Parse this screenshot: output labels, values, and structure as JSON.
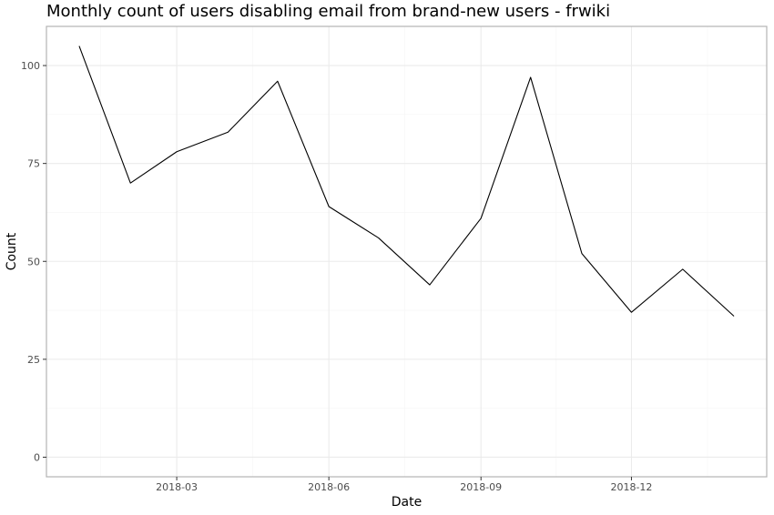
{
  "chart_data": {
    "type": "line",
    "title": "Monthly count of users disabling email from brand-new users - frwiki",
    "xlabel": "Date",
    "ylabel": "Count",
    "x": [
      "2018-01",
      "2018-02",
      "2018-03",
      "2018-04",
      "2018-05",
      "2018-06",
      "2018-07",
      "2018-08",
      "2018-09",
      "2018-10",
      "2018-11",
      "2018-12",
      "2019-01",
      "2019-02"
    ],
    "series": [
      {
        "values": [
          105,
          70,
          78,
          83,
          96,
          64,
          56,
          44,
          61,
          97,
          52,
          37,
          48,
          36
        ]
      }
    ],
    "x_ticks": [
      "2018-03",
      "2018-06",
      "2018-09",
      "2018-12"
    ],
    "y_ticks": [
      0,
      25,
      50,
      75,
      100
    ],
    "ylim": [
      -5,
      110
    ],
    "grid": true,
    "line_color": "#000000",
    "grid_major_color": "#ebebeb",
    "grid_minor_color": "#f5f5f5",
    "panel_border_color": "#b3b3b3"
  }
}
